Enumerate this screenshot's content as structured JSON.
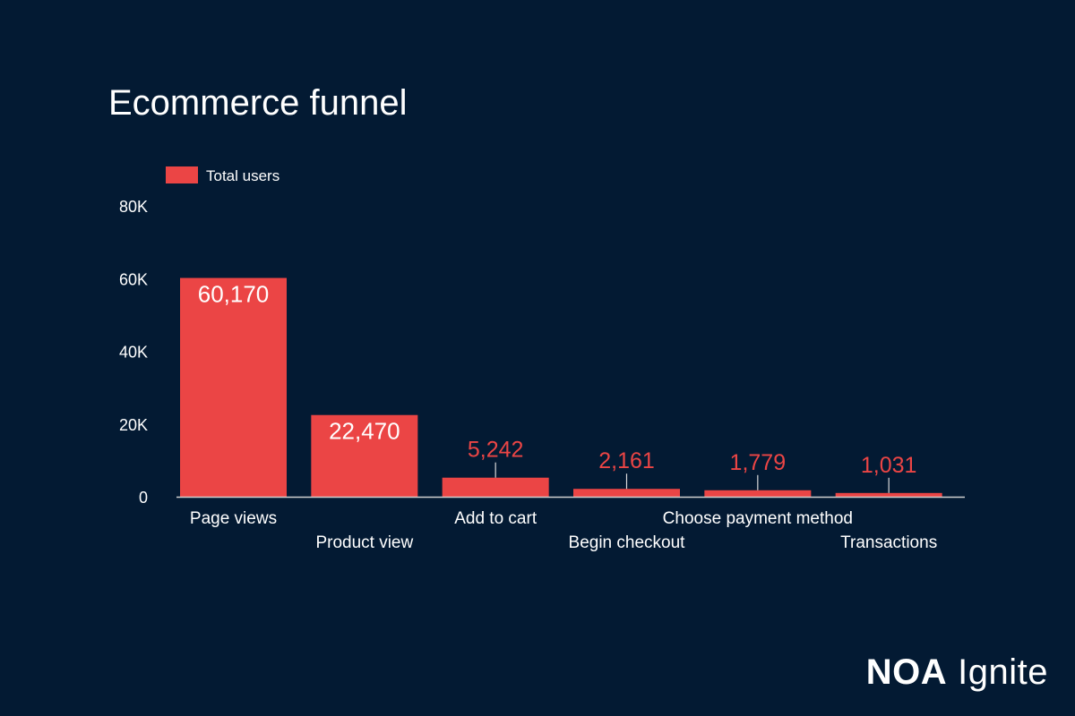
{
  "chart_data": {
    "type": "bar",
    "title": "Ecommerce funnel",
    "categories": [
      "Page views",
      "Product view",
      "Add to cart",
      "Begin checkout",
      "Choose payment method",
      "Transactions"
    ],
    "series": [
      {
        "name": "Total users",
        "values": [
          60170,
          22470,
          5242,
          2161,
          1779,
          1031
        ],
        "color": "#eb4545"
      }
    ],
    "data_labels": [
      "60,170",
      "22,470",
      "5,242",
      "2,161",
      "1,779",
      "1,031"
    ],
    "yticks": [
      0,
      20000,
      40000,
      60000,
      80000
    ],
    "ytick_labels": [
      "0",
      "20K",
      "40K",
      "60K",
      "80K"
    ],
    "ylim": [
      0,
      80000
    ],
    "grid": false,
    "legend": "top-left"
  },
  "brand": {
    "part1": "NOA",
    "part2": "Ignite"
  }
}
